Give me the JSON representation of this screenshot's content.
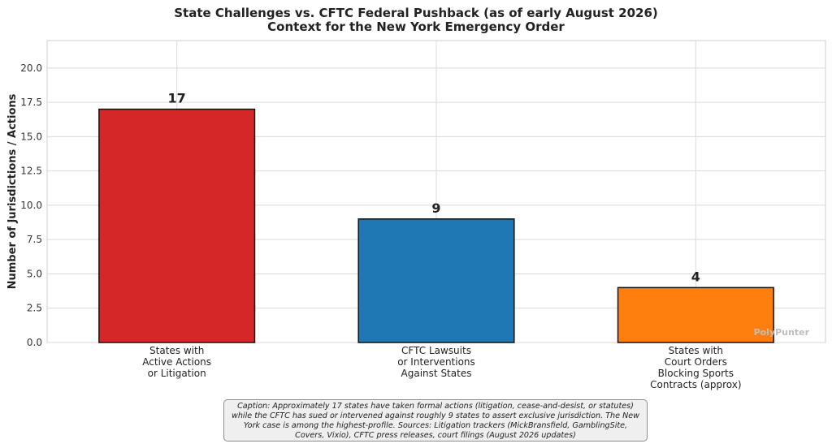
{
  "chart_data": {
    "type": "bar",
    "title": "State Challenges vs. CFTC Federal Pushback (as of early August 2026)",
    "subtitle": "Context for the New York Emergency Order",
    "xlabel": "",
    "ylabel": "Number of Jurisdictions / Actions",
    "ylim": [
      0,
      22
    ],
    "yticks": [
      "0.0",
      "2.5",
      "5.0",
      "7.5",
      "10.0",
      "12.5",
      "15.0",
      "17.5",
      "20.0"
    ],
    "categories": [
      [
        "States with",
        "Active Actions",
        "or Litigation"
      ],
      [
        "CFTC Lawsuits",
        "or Interventions",
        "Against States"
      ],
      [
        "States with",
        "Court Orders",
        "Blocking Sports",
        "Contracts (approx)"
      ]
    ],
    "values": [
      17,
      9,
      4
    ],
    "data_labels": [
      "17",
      "9",
      "4"
    ],
    "colors": [
      "#d62728",
      "#1f77b4",
      "#ff7f0e"
    ],
    "grid": true,
    "watermark": "PolyPunter"
  },
  "caption": "Caption: Approximately 17 states have taken formal actions (litigation, cease-and-desist, or statutes) while the CFTC has sued or intervened against roughly 9 states to assert exclusive jurisdiction. The New York case is among the highest-profile. Sources: Litigation trackers (MickBransfield, GamblingSite, Covers, Vixio), CFTC press releases, court filings (August 2026 updates)"
}
